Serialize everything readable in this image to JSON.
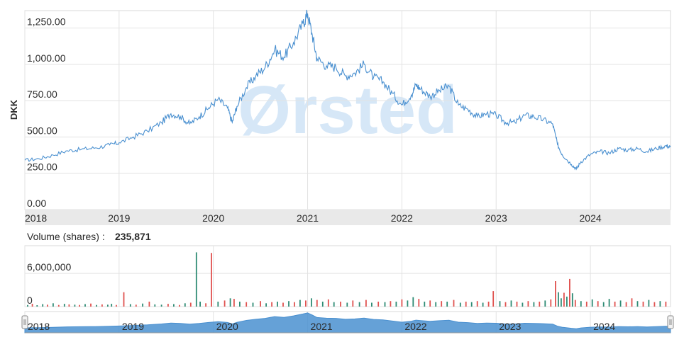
{
  "chart_data": {
    "type": "line",
    "ylabel": "DKK",
    "watermark": "Ørsted",
    "price_axis": {
      "ylim": [
        0,
        1370
      ],
      "ticks": [
        "0.00",
        "250.00",
        "500.00",
        "750.00",
        "1,000.00",
        "1,250.00"
      ],
      "tick_values": [
        0,
        250,
        500,
        750,
        1000,
        1250
      ]
    },
    "x_axis": {
      "xlim": [
        2018.0,
        2024.85
      ],
      "ticks": [
        "2018",
        "2019",
        "2020",
        "2021",
        "2022",
        "2023",
        "2024"
      ],
      "tick_values": [
        2018,
        2019,
        2020,
        2021,
        2022,
        2023,
        2024
      ]
    },
    "series": [
      {
        "color": "#4a90d0",
        "x": [
          2018.0,
          2018.15,
          2018.3,
          2018.45,
          2018.6,
          2018.75,
          2018.9,
          2019.0,
          2019.15,
          2019.3,
          2019.45,
          2019.55,
          2019.65,
          2019.75,
          2019.85,
          2019.95,
          2020.05,
          2020.15,
          2020.2,
          2020.25,
          2020.35,
          2020.45,
          2020.55,
          2020.65,
          2020.75,
          2020.85,
          2020.95,
          2021.0,
          2021.05,
          2021.1,
          2021.2,
          2021.3,
          2021.4,
          2021.5,
          2021.6,
          2021.7,
          2021.8,
          2021.9,
          2022.0,
          2022.1,
          2022.15,
          2022.2,
          2022.3,
          2022.4,
          2022.5,
          2022.6,
          2022.7,
          2022.8,
          2022.9,
          2023.0,
          2023.1,
          2023.2,
          2023.3,
          2023.4,
          2023.5,
          2023.6,
          2023.65,
          2023.7,
          2023.8,
          2023.85,
          2023.9,
          2024.0,
          2024.1,
          2024.2,
          2024.3,
          2024.4,
          2024.5,
          2024.6,
          2024.7,
          2024.8,
          2024.85
        ],
        "y": [
          340,
          350,
          375,
          405,
          415,
          425,
          445,
          460,
          500,
          540,
          600,
          660,
          640,
          590,
          640,
          700,
          760,
          700,
          600,
          710,
          840,
          920,
          980,
          1100,
          1050,
          1150,
          1280,
          1350,
          1200,
          1040,
          990,
          980,
          920,
          940,
          1000,
          910,
          880,
          800,
          720,
          790,
          860,
          830,
          780,
          820,
          850,
          720,
          690,
          640,
          660,
          650,
          600,
          600,
          650,
          640,
          620,
          590,
          450,
          380,
          310,
          280,
          330,
          380,
          400,
          390,
          420,
          410,
          420,
          400,
          420,
          440,
          430
        ]
      }
    ],
    "volume": {
      "label": "Volume (shares) :",
      "last_value": "235,871",
      "ylim": [
        0,
        11000000
      ],
      "ticks": [
        "0",
        "6,000,000"
      ],
      "tick_values": [
        0,
        6000000
      ],
      "up_color": "#2e8b74",
      "down_color": "#e0524f",
      "bars": [
        {
          "x": 2018.03,
          "v": 300000,
          "dir": "up"
        },
        {
          "x": 2018.08,
          "v": 500000,
          "dir": "down"
        },
        {
          "x": 2018.13,
          "v": 250000,
          "dir": "up"
        },
        {
          "x": 2018.19,
          "v": 450000,
          "dir": "up"
        },
        {
          "x": 2018.24,
          "v": 350000,
          "dir": "down"
        },
        {
          "x": 2018.3,
          "v": 600000,
          "dir": "up"
        },
        {
          "x": 2018.36,
          "v": 300000,
          "dir": "down"
        },
        {
          "x": 2018.42,
          "v": 500000,
          "dir": "up"
        },
        {
          "x": 2018.47,
          "v": 400000,
          "dir": "down"
        },
        {
          "x": 2018.53,
          "v": 350000,
          "dir": "up"
        },
        {
          "x": 2018.58,
          "v": 300000,
          "dir": "down"
        },
        {
          "x": 2018.64,
          "v": 450000,
          "dir": "up"
        },
        {
          "x": 2018.7,
          "v": 550000,
          "dir": "down"
        },
        {
          "x": 2018.76,
          "v": 300000,
          "dir": "up"
        },
        {
          "x": 2018.82,
          "v": 400000,
          "dir": "down"
        },
        {
          "x": 2018.88,
          "v": 350000,
          "dir": "up"
        },
        {
          "x": 2018.92,
          "v": 500000,
          "dir": "up"
        },
        {
          "x": 2018.97,
          "v": 300000,
          "dir": "down"
        },
        {
          "x": 2019.05,
          "v": 2600000,
          "dir": "down"
        },
        {
          "x": 2019.12,
          "v": 450000,
          "dir": "up"
        },
        {
          "x": 2019.18,
          "v": 350000,
          "dir": "down"
        },
        {
          "x": 2019.25,
          "v": 550000,
          "dir": "up"
        },
        {
          "x": 2019.32,
          "v": 900000,
          "dir": "down"
        },
        {
          "x": 2019.38,
          "v": 400000,
          "dir": "up"
        },
        {
          "x": 2019.45,
          "v": 350000,
          "dir": "up"
        },
        {
          "x": 2019.52,
          "v": 500000,
          "dir": "down"
        },
        {
          "x": 2019.58,
          "v": 450000,
          "dir": "up"
        },
        {
          "x": 2019.64,
          "v": 300000,
          "dir": "down"
        },
        {
          "x": 2019.7,
          "v": 600000,
          "dir": "up"
        },
        {
          "x": 2019.76,
          "v": 700000,
          "dir": "down"
        },
        {
          "x": 2019.82,
          "v": 9800000,
          "dir": "up"
        },
        {
          "x": 2019.86,
          "v": 900000,
          "dir": "up"
        },
        {
          "x": 2019.92,
          "v": 600000,
          "dir": "down"
        },
        {
          "x": 2019.98,
          "v": 9700000,
          "dir": "down"
        },
        {
          "x": 2020.05,
          "v": 900000,
          "dir": "up"
        },
        {
          "x": 2020.12,
          "v": 1100000,
          "dir": "down"
        },
        {
          "x": 2020.18,
          "v": 1500000,
          "dir": "up"
        },
        {
          "x": 2020.22,
          "v": 1400000,
          "dir": "down"
        },
        {
          "x": 2020.28,
          "v": 900000,
          "dir": "up"
        },
        {
          "x": 2020.35,
          "v": 800000,
          "dir": "down"
        },
        {
          "x": 2020.42,
          "v": 700000,
          "dir": "up"
        },
        {
          "x": 2020.5,
          "v": 1000000,
          "dir": "down"
        },
        {
          "x": 2020.56,
          "v": 600000,
          "dir": "up"
        },
        {
          "x": 2020.62,
          "v": 800000,
          "dir": "down"
        },
        {
          "x": 2020.68,
          "v": 900000,
          "dir": "up"
        },
        {
          "x": 2020.74,
          "v": 700000,
          "dir": "down"
        },
        {
          "x": 2020.8,
          "v": 1000000,
          "dir": "up"
        },
        {
          "x": 2020.86,
          "v": 800000,
          "dir": "down"
        },
        {
          "x": 2020.92,
          "v": 1200000,
          "dir": "up"
        },
        {
          "x": 2020.98,
          "v": 1100000,
          "dir": "down"
        },
        {
          "x": 2021.04,
          "v": 1500000,
          "dir": "up"
        },
        {
          "x": 2021.1,
          "v": 1200000,
          "dir": "down"
        },
        {
          "x": 2021.16,
          "v": 900000,
          "dir": "up"
        },
        {
          "x": 2021.22,
          "v": 1300000,
          "dir": "down"
        },
        {
          "x": 2021.28,
          "v": 800000,
          "dir": "up"
        },
        {
          "x": 2021.35,
          "v": 900000,
          "dir": "down"
        },
        {
          "x": 2021.42,
          "v": 700000,
          "dir": "up"
        },
        {
          "x": 2021.48,
          "v": 1100000,
          "dir": "down"
        },
        {
          "x": 2021.55,
          "v": 800000,
          "dir": "up"
        },
        {
          "x": 2021.62,
          "v": 1200000,
          "dir": "down"
        },
        {
          "x": 2021.68,
          "v": 700000,
          "dir": "up"
        },
        {
          "x": 2021.75,
          "v": 900000,
          "dir": "down"
        },
        {
          "x": 2021.82,
          "v": 800000,
          "dir": "up"
        },
        {
          "x": 2021.88,
          "v": 1000000,
          "dir": "down"
        },
        {
          "x": 2021.94,
          "v": 900000,
          "dir": "up"
        },
        {
          "x": 2022.0,
          "v": 1300000,
          "dir": "down"
        },
        {
          "x": 2022.06,
          "v": 1100000,
          "dir": "up"
        },
        {
          "x": 2022.12,
          "v": 1700000,
          "dir": "up"
        },
        {
          "x": 2022.18,
          "v": 1400000,
          "dir": "down"
        },
        {
          "x": 2022.24,
          "v": 900000,
          "dir": "up"
        },
        {
          "x": 2022.3,
          "v": 1100000,
          "dir": "down"
        },
        {
          "x": 2022.36,
          "v": 800000,
          "dir": "up"
        },
        {
          "x": 2022.42,
          "v": 1000000,
          "dir": "down"
        },
        {
          "x": 2022.48,
          "v": 900000,
          "dir": "up"
        },
        {
          "x": 2022.55,
          "v": 1200000,
          "dir": "down"
        },
        {
          "x": 2022.62,
          "v": 700000,
          "dir": "up"
        },
        {
          "x": 2022.68,
          "v": 900000,
          "dir": "down"
        },
        {
          "x": 2022.74,
          "v": 800000,
          "dir": "up"
        },
        {
          "x": 2022.8,
          "v": 1000000,
          "dir": "down"
        },
        {
          "x": 2022.86,
          "v": 700000,
          "dir": "up"
        },
        {
          "x": 2022.92,
          "v": 900000,
          "dir": "down"
        },
        {
          "x": 2022.97,
          "v": 2800000,
          "dir": "down"
        },
        {
          "x": 2023.04,
          "v": 1000000,
          "dir": "up"
        },
        {
          "x": 2023.1,
          "v": 800000,
          "dir": "down"
        },
        {
          "x": 2023.16,
          "v": 1100000,
          "dir": "up"
        },
        {
          "x": 2023.22,
          "v": 900000,
          "dir": "down"
        },
        {
          "x": 2023.28,
          "v": 700000,
          "dir": "up"
        },
        {
          "x": 2023.34,
          "v": 1000000,
          "dir": "down"
        },
        {
          "x": 2023.4,
          "v": 800000,
          "dir": "up"
        },
        {
          "x": 2023.46,
          "v": 900000,
          "dir": "down"
        },
        {
          "x": 2023.52,
          "v": 1100000,
          "dir": "up"
        },
        {
          "x": 2023.58,
          "v": 1300000,
          "dir": "down"
        },
        {
          "x": 2023.63,
          "v": 4600000,
          "dir": "down"
        },
        {
          "x": 2023.66,
          "v": 2600000,
          "dir": "up"
        },
        {
          "x": 2023.69,
          "v": 1500000,
          "dir": "up"
        },
        {
          "x": 2023.72,
          "v": 2500000,
          "dir": "down"
        },
        {
          "x": 2023.75,
          "v": 1800000,
          "dir": "up"
        },
        {
          "x": 2023.78,
          "v": 5000000,
          "dir": "down"
        },
        {
          "x": 2023.81,
          "v": 2400000,
          "dir": "up"
        },
        {
          "x": 2023.84,
          "v": 1200000,
          "dir": "down"
        },
        {
          "x": 2023.9,
          "v": 1000000,
          "dir": "up"
        },
        {
          "x": 2023.96,
          "v": 900000,
          "dir": "down"
        },
        {
          "x": 2024.02,
          "v": 1300000,
          "dir": "up"
        },
        {
          "x": 2024.08,
          "v": 1000000,
          "dir": "down"
        },
        {
          "x": 2024.14,
          "v": 800000,
          "dir": "up"
        },
        {
          "x": 2024.2,
          "v": 1400000,
          "dir": "up"
        },
        {
          "x": 2024.26,
          "v": 900000,
          "dir": "down"
        },
        {
          "x": 2024.32,
          "v": 1100000,
          "dir": "up"
        },
        {
          "x": 2024.38,
          "v": 800000,
          "dir": "down"
        },
        {
          "x": 2024.44,
          "v": 1500000,
          "dir": "down"
        },
        {
          "x": 2024.5,
          "v": 1000000,
          "dir": "up"
        },
        {
          "x": 2024.56,
          "v": 900000,
          "dir": "down"
        },
        {
          "x": 2024.62,
          "v": 1200000,
          "dir": "up"
        },
        {
          "x": 2024.68,
          "v": 800000,
          "dir": "down"
        },
        {
          "x": 2024.74,
          "v": 1000000,
          "dir": "up"
        },
        {
          "x": 2024.8,
          "v": 900000,
          "dir": "down"
        }
      ]
    },
    "navigator": {
      "color": "#4a90d0",
      "ticks": [
        "2018",
        "2019",
        "2020",
        "2021",
        "2022",
        "2023",
        "2024"
      ],
      "tick_values": [
        2018,
        2019,
        2020,
        2021,
        2022,
        2023,
        2024
      ]
    }
  }
}
